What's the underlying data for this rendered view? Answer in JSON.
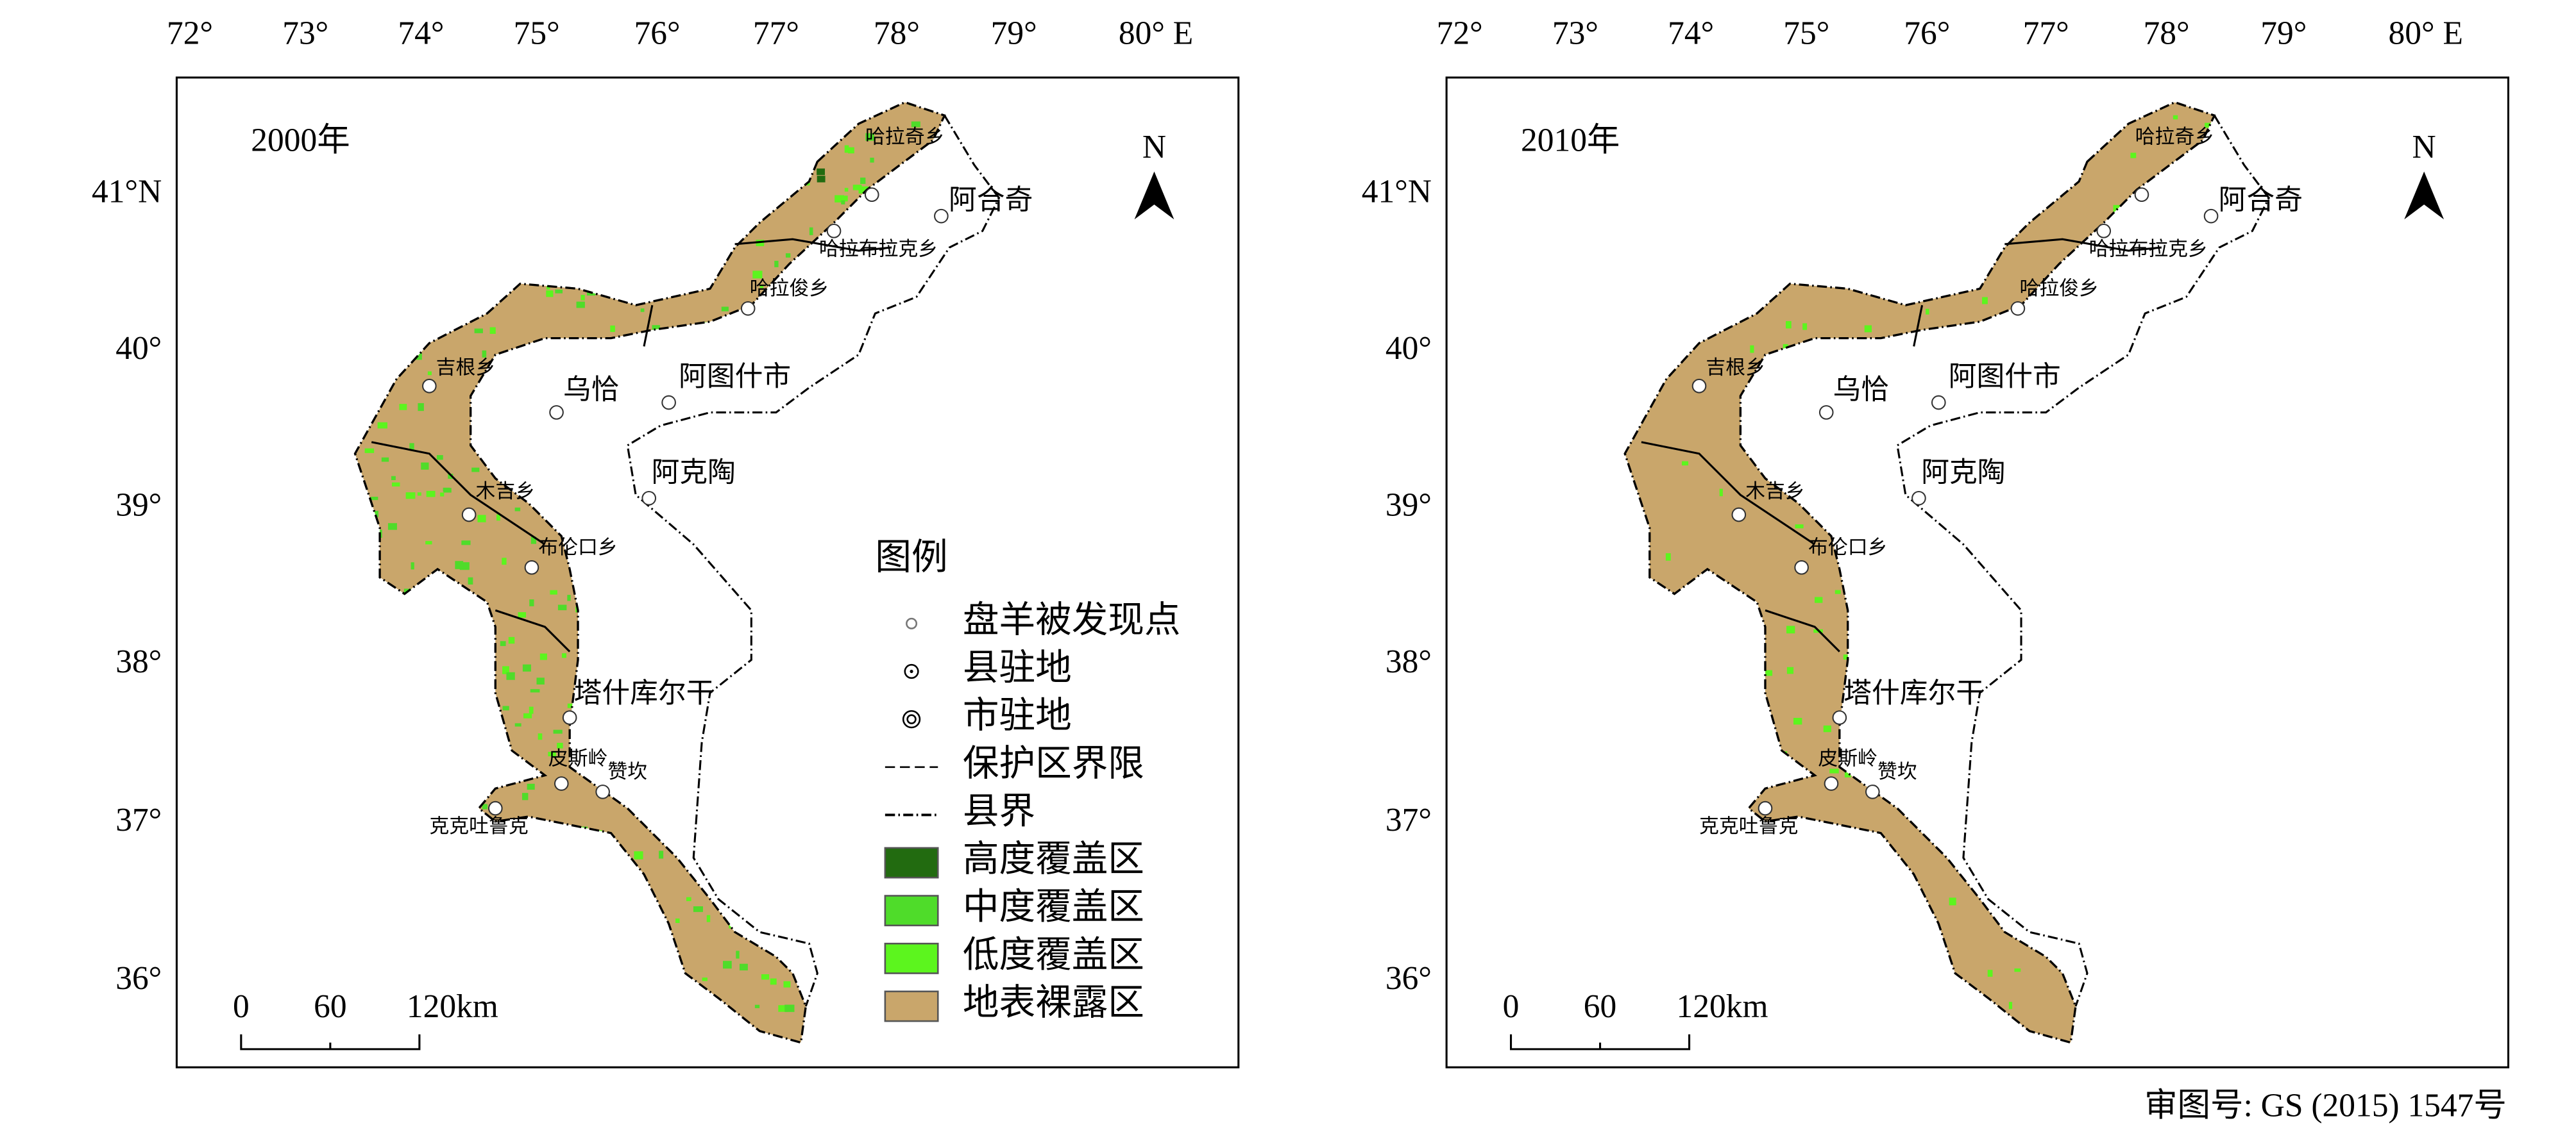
{
  "review_number": "审图号: GS (2015) 1547号",
  "lon_labels": [
    "72°",
    "73°",
    "74°",
    "75°",
    "76°",
    "77°",
    "78°",
    "79°",
    "80° E"
  ],
  "lat_labels": [
    "41°N",
    "40°",
    "39°",
    "38°",
    "37°",
    "36°"
  ],
  "north": "N",
  "scale_labels": [
    "0",
    "60",
    "120km"
  ],
  "places": [
    "哈拉奇乡",
    "阿合奇",
    "哈拉布拉克乡",
    "哈拉俊乡",
    "吉根乡",
    "乌恰",
    "阿图什市",
    "阿克陶",
    "木吉乡",
    "布伦口乡",
    "塔什库尔干",
    "皮斯岭",
    "赞坎",
    "克克吐鲁克"
  ],
  "legend": {
    "title": "图例",
    "items": [
      "盘羊被发现点",
      "县驻地",
      "市驻地",
      "保护区界限",
      "县界",
      "高度覆盖区",
      "中度覆盖区",
      "低度覆盖区",
      "地表裸露区"
    ]
  },
  "panels": [
    {
      "year": "2000年"
    },
    {
      "year": "2010年"
    }
  ]
}
